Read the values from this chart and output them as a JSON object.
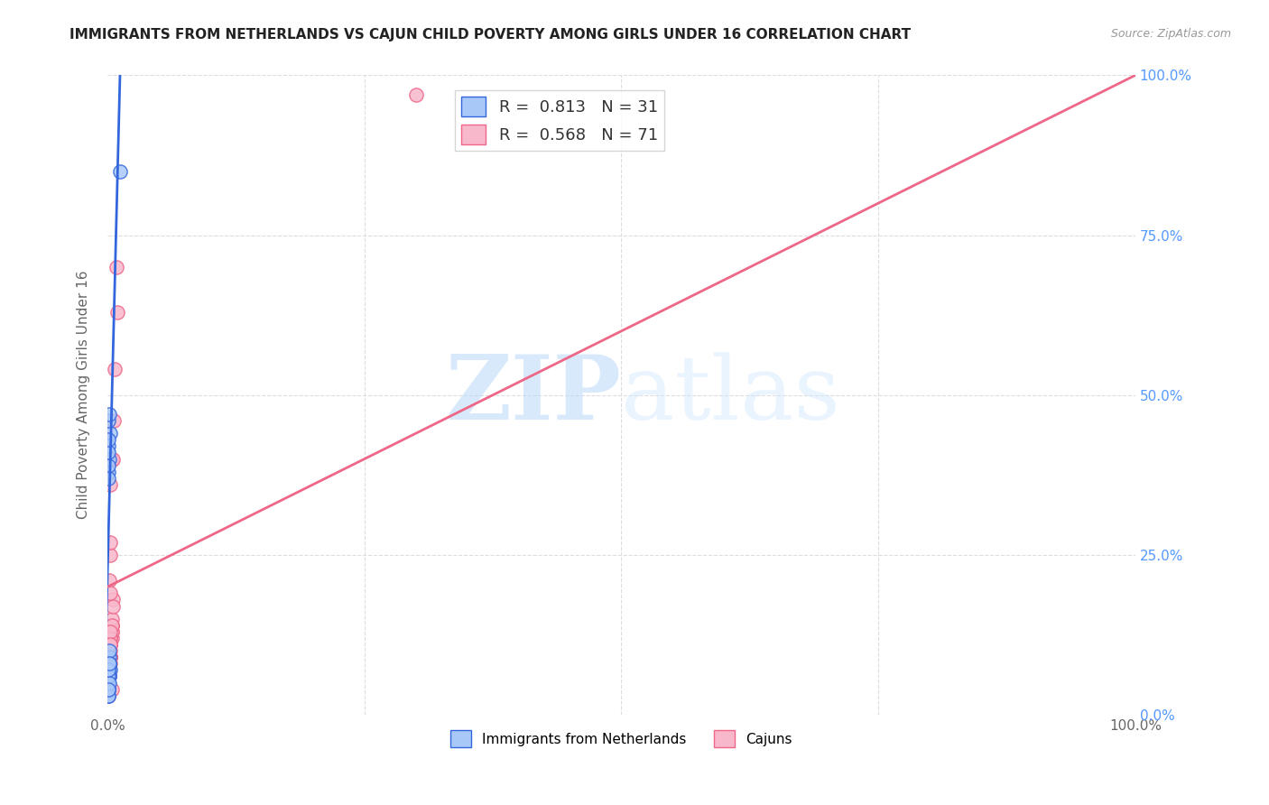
{
  "title": "IMMIGRANTS FROM NETHERLANDS VS CAJUN CHILD POVERTY AMONG GIRLS UNDER 16 CORRELATION CHART",
  "source": "Source: ZipAtlas.com",
  "ylabel": "Child Poverty Among Girls Under 16",
  "xlim": [
    0,
    1
  ],
  "ylim": [
    0,
    1
  ],
  "x_tick_labels": [
    "0.0%",
    "",
    "",
    "",
    "100.0%"
  ],
  "y_tick_labels_right": [
    "0.0%",
    "25.0%",
    "50.0%",
    "75.0%",
    "100.0%"
  ],
  "legend_r_blue": "0.813",
  "legend_n_blue": "31",
  "legend_r_pink": "0.568",
  "legend_n_pink": "71",
  "legend_label_blue": "Immigrants from Netherlands",
  "legend_label_pink": "Cajuns",
  "watermark_zip": "ZIP",
  "watermark_atlas": "atlas",
  "blue_fill": "#a8c8f8",
  "pink_fill": "#f8b8cc",
  "line_blue": "#3366dd",
  "line_pink": "#ee6688",
  "title_color": "#222222",
  "source_color": "#999999",
  "axis_label_color": "#666666",
  "right_tick_color": "#5599ff",
  "grid_color": "#dddddd",
  "blue_scatter_x": [
    0.001,
    0.002,
    0.001,
    0.003,
    0.001,
    0.002,
    0.001,
    0.001,
    0.002,
    0.001,
    0.002,
    0.001,
    0.002,
    0.001,
    0.001,
    0.002,
    0.001,
    0.002,
    0.001,
    0.002,
    0.003,
    0.001,
    0.001,
    0.002,
    0.001,
    0.001,
    0.001,
    0.002,
    0.001,
    0.001,
    0.012
  ],
  "blue_scatter_y": [
    0.04,
    0.06,
    0.03,
    0.07,
    0.05,
    0.08,
    0.04,
    0.05,
    0.06,
    0.07,
    0.09,
    0.04,
    0.08,
    0.06,
    0.03,
    0.05,
    0.07,
    0.1,
    0.04,
    0.08,
    0.44,
    0.46,
    0.38,
    0.4,
    0.42,
    0.39,
    0.37,
    0.47,
    0.41,
    0.43,
    0.85
  ],
  "pink_scatter_x": [
    0.001,
    0.003,
    0.001,
    0.002,
    0.004,
    0.003,
    0.001,
    0.002,
    0.003,
    0.004,
    0.005,
    0.001,
    0.002,
    0.003,
    0.002,
    0.003,
    0.002,
    0.004,
    0.001,
    0.003,
    0.004,
    0.002,
    0.001,
    0.003,
    0.002,
    0.002,
    0.001,
    0.003,
    0.002,
    0.003,
    0.004,
    0.003,
    0.001,
    0.002,
    0.003,
    0.002,
    0.001,
    0.003,
    0.002,
    0.004,
    0.005,
    0.001,
    0.002,
    0.003,
    0.002,
    0.002,
    0.003,
    0.001,
    0.002,
    0.004,
    0.002,
    0.003,
    0.001,
    0.002,
    0.003,
    0.003,
    0.002,
    0.002,
    0.003,
    0.001,
    0.003,
    0.004,
    0.006,
    0.007,
    0.009,
    0.01,
    0.005,
    0.002,
    0.003,
    0.3,
    0.004
  ],
  "pink_scatter_y": [
    0.06,
    0.09,
    0.05,
    0.08,
    0.14,
    0.11,
    0.04,
    0.06,
    0.09,
    0.13,
    0.18,
    0.05,
    0.07,
    0.11,
    0.06,
    0.08,
    0.07,
    0.12,
    0.04,
    0.1,
    0.14,
    0.06,
    0.05,
    0.11,
    0.09,
    0.08,
    0.05,
    0.11,
    0.07,
    0.09,
    0.15,
    0.25,
    0.03,
    0.08,
    0.27,
    0.07,
    0.04,
    0.09,
    0.08,
    0.13,
    0.17,
    0.05,
    0.07,
    0.12,
    0.09,
    0.08,
    0.12,
    0.04,
    0.09,
    0.14,
    0.07,
    0.11,
    0.04,
    0.08,
    0.09,
    0.13,
    0.07,
    0.08,
    0.11,
    0.04,
    0.36,
    0.4,
    0.46,
    0.54,
    0.7,
    0.63,
    0.4,
    0.21,
    0.19,
    0.97,
    0.04
  ],
  "blue_line_x": [
    -0.005,
    0.013
  ],
  "blue_line_y": [
    -0.1,
    1.05
  ],
  "pink_line_x": [
    0.0,
    1.0
  ],
  "pink_line_y": [
    0.2,
    1.0
  ]
}
